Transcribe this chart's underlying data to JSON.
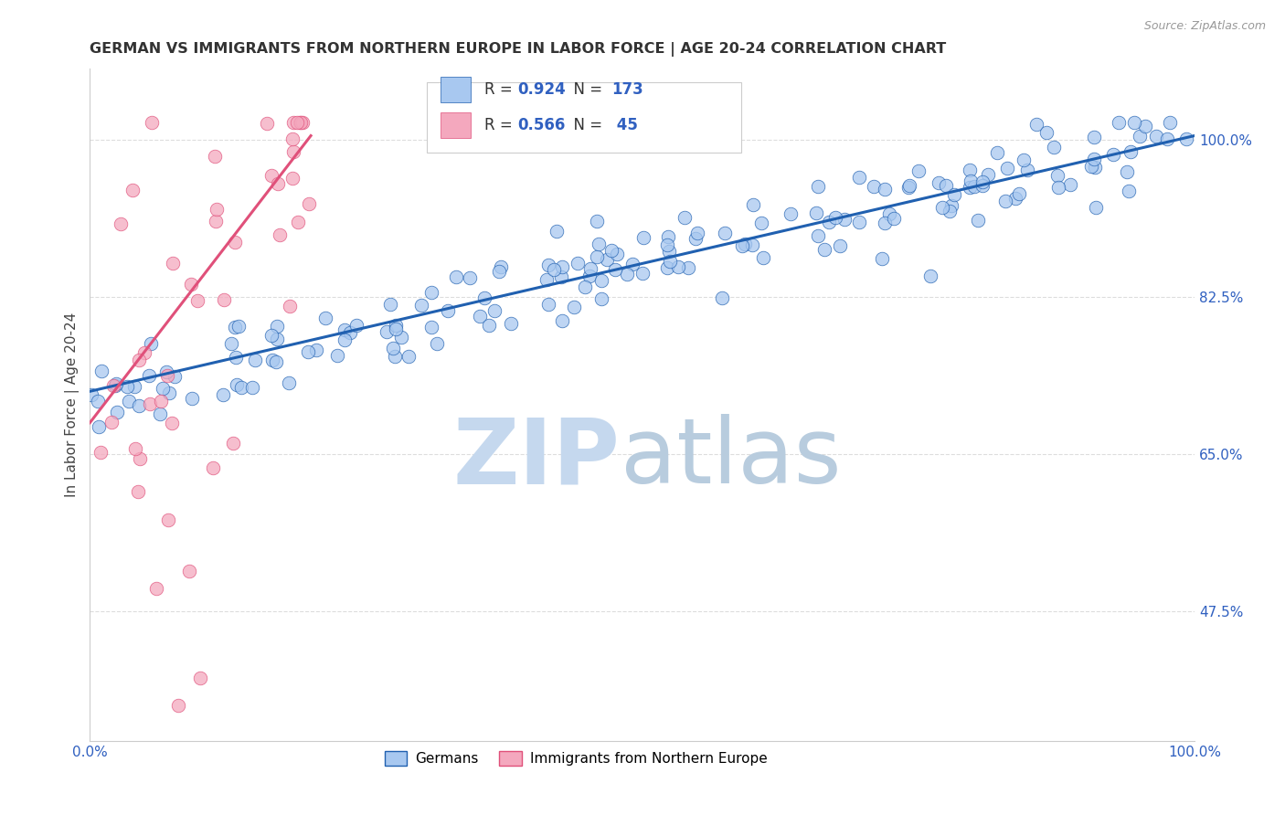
{
  "title": "GERMAN VS IMMIGRANTS FROM NORTHERN EUROPE IN LABOR FORCE | AGE 20-24 CORRELATION CHART",
  "source": "Source: ZipAtlas.com",
  "ylabel": "In Labor Force | Age 20-24",
  "xlim": [
    0.0,
    1.0
  ],
  "ylim": [
    0.33,
    1.08
  ],
  "yticks": [
    0.475,
    0.65,
    0.825,
    1.0
  ],
  "ytick_labels": [
    "47.5%",
    "65.0%",
    "82.5%",
    "100.0%"
  ],
  "xticks": [
    0.0,
    0.1,
    0.2,
    0.3,
    0.4,
    0.5,
    0.6,
    0.7,
    0.8,
    0.9,
    1.0
  ],
  "xtick_labels": [
    "0.0%",
    "",
    "",
    "",
    "",
    "",
    "",
    "",
    "",
    "",
    "100.0%"
  ],
  "blue_R": 0.924,
  "blue_N": 173,
  "pink_R": 0.566,
  "pink_N": 45,
  "blue_color": "#a8c8f0",
  "pink_color": "#f4a8be",
  "blue_line_color": "#2060b0",
  "pink_line_color": "#e0507a",
  "title_color": "#333333",
  "axis_label_color": "#3060c0",
  "right_tick_color": "#3060c0",
  "grid_color": "#dddddd",
  "background_color": "#ffffff",
  "legend_label_blue": "Germans",
  "legend_label_pink": "Immigrants from Northern Europe",
  "blue_trend_x0": 0.0,
  "blue_trend_y0": 0.72,
  "blue_trend_x1": 1.0,
  "blue_trend_y1": 1.005,
  "pink_trend_x0": 0.0,
  "pink_trend_y0": 0.685,
  "pink_trend_x1": 0.2,
  "pink_trend_y1": 1.005
}
